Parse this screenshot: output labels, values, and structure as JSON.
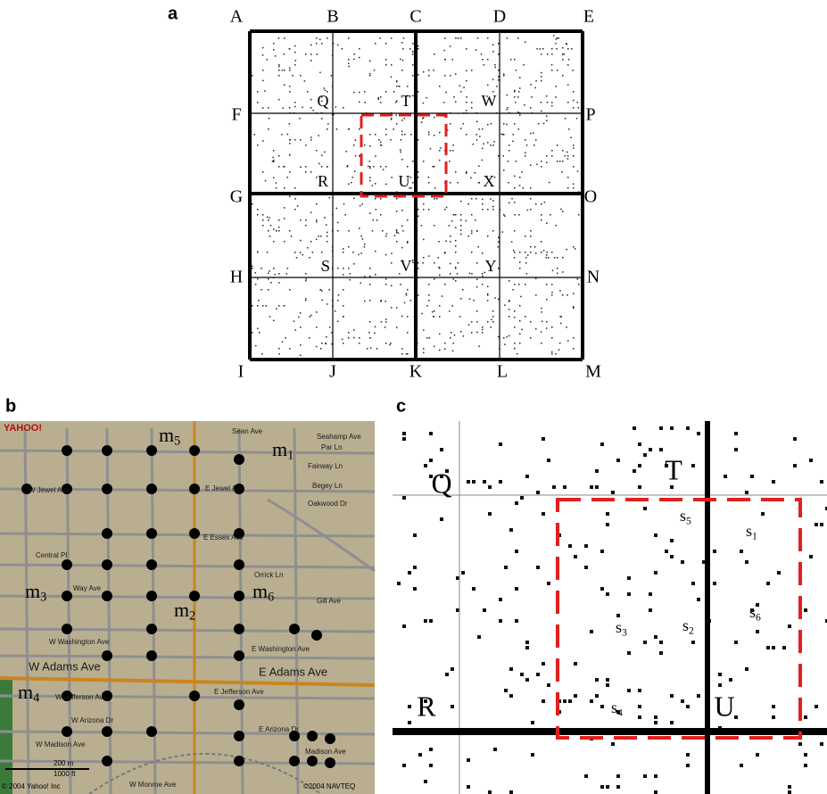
{
  "panel_a": {
    "label": "a",
    "corners": [
      "A",
      "B",
      "C",
      "D",
      "E",
      "F",
      "P",
      "G",
      "O",
      "H",
      "N",
      "I",
      "J",
      "K",
      "L",
      "M"
    ],
    "cells": [
      "Q",
      "T",
      "W",
      "R",
      "U",
      "X",
      "S",
      "V",
      "Y"
    ]
  },
  "panel_b": {
    "label": "b",
    "logo": "YAHOO!",
    "markers": [
      {
        "base": "m",
        "sub": "5"
      },
      {
        "base": "m",
        "sub": "1"
      },
      {
        "base": "m",
        "sub": "3"
      },
      {
        "base": "m",
        "sub": "2"
      },
      {
        "base": "m",
        "sub": "6"
      },
      {
        "base": "m",
        "sub": "4"
      }
    ],
    "streets": [
      "Sean Ave",
      "Seahamp Ave",
      "Par Ln",
      "Fairway Ln",
      "Begey Ln",
      "Oakwood Dr",
      "W Jewel Ave",
      "E Jewel Ave",
      "E Essex Ave",
      "Central Pl",
      "Way Ave",
      "Orrick Ln",
      "Gill Ave",
      "W Washington Ave",
      "E Washington Ave",
      "W Adams Ave",
      "E Adams Ave",
      "W Jefferson Ave",
      "E Jefferson Ave",
      "W Arizona Dr",
      "E Arizona Dr",
      "W Madison Ave",
      "Madison Ave",
      "W Monroe Ave"
    ],
    "scale": [
      "200 m",
      "1000 ft"
    ],
    "credits": [
      "© 2004 Yahoo! Inc",
      "©2004 NAVTEQ"
    ]
  },
  "panel_c": {
    "label": "c",
    "cells": [
      "Q",
      "T",
      "R",
      "U"
    ],
    "sensors": [
      {
        "base": "s",
        "sub": "5"
      },
      {
        "base": "s",
        "sub": "1"
      },
      {
        "base": "s",
        "sub": "6"
      },
      {
        "base": "s",
        "sub": "3"
      },
      {
        "base": "s",
        "sub": "2"
      },
      {
        "base": "s",
        "sub": "4"
      }
    ]
  }
}
